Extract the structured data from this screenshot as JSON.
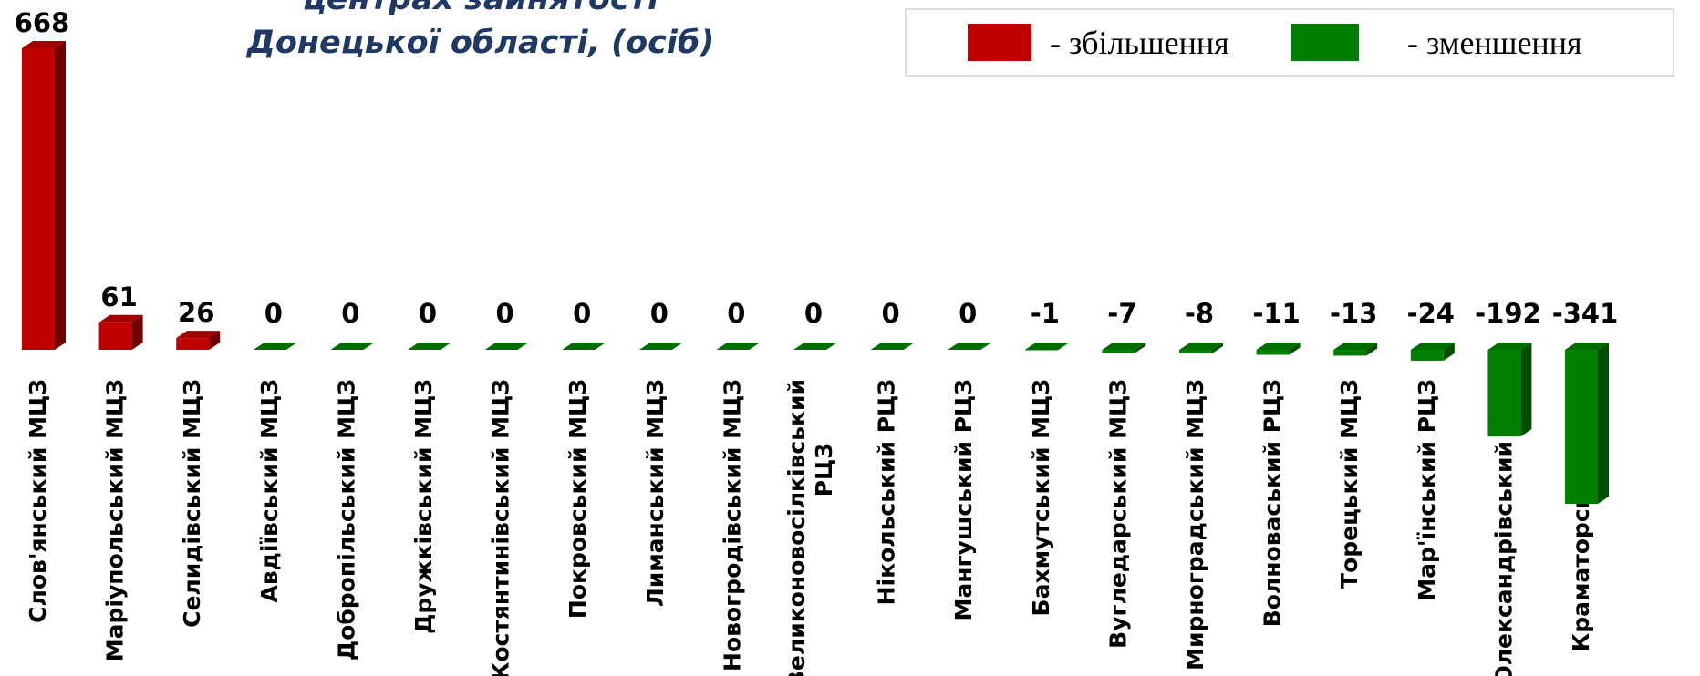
{
  "chart_data": {
    "type": "bar3d",
    "title": [
      "центрах зайнятості",
      "Донецької області, (осіб)"
    ],
    "legend": [
      {
        "name": "- збільшення",
        "color": "#c00000"
      },
      {
        "name": "- зменшення",
        "color": "#008000"
      }
    ],
    "categories": [
      "Слов'янський МЦЗ",
      "Маріупольський МЦЗ",
      "Селидівський МЦЗ",
      "Авдіївський МЦЗ",
      "Добропільський МЦЗ",
      "Дружківський МЦЗ",
      "Костянтинівський МЦЗ",
      "Покровський МЦЗ",
      "Лиманський МЦЗ",
      "Новогродівський МЦЗ",
      "Великоновосілківський РЦЗ",
      "Нікольський РЦЗ",
      "Мангушський РЦЗ",
      "Бахмутський МЦЗ",
      "Вугледарський МЦЗ",
      "Мирноградський МЦЗ",
      "Волноваський РЦЗ",
      "Торецький МЦЗ",
      "Мар'їнський РЦЗ",
      "Олександрівський РЦЗ",
      "Краматорський МЦЗ"
    ],
    "values": [
      668,
      61,
      26,
      0,
      0,
      0,
      0,
      0,
      0,
      0,
      0,
      0,
      0,
      -1,
      -7,
      -8,
      -11,
      -13,
      -24,
      -192,
      -341
    ]
  }
}
